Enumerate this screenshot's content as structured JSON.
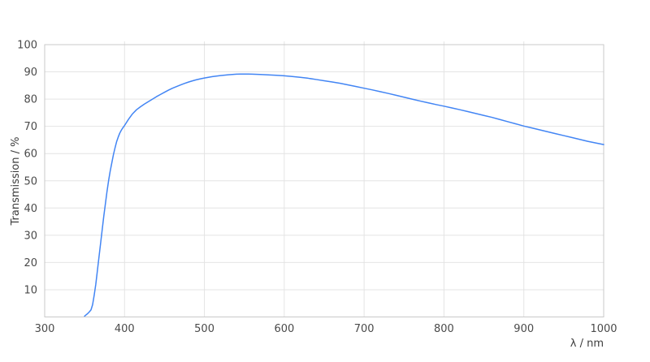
{
  "page": {
    "background": "#ffffff"
  },
  "chart_data": {
    "type": "line",
    "title": "",
    "xlabel": "λ / nm",
    "ylabel": "Transmission / %",
    "xlim": [
      300,
      1000
    ],
    "ylim": [
      0,
      100
    ],
    "x_ticks": [
      300,
      400,
      500,
      600,
      700,
      800,
      900,
      1000
    ],
    "y_ticks": [
      10,
      20,
      30,
      40,
      50,
      60,
      70,
      80,
      90,
      100
    ],
    "grid": true,
    "legend": false,
    "colors": {
      "line": "#4285f4",
      "grid": "#e4e4e4",
      "border": "#c9c9c9",
      "tick_label": "#4a4a4a",
      "axis_title": "#3c3c3c",
      "background": "#ffffff"
    },
    "series": [
      {
        "points": [
          [
            350,
            0.3
          ],
          [
            352,
            0.8
          ],
          [
            354,
            1.3
          ],
          [
            356,
            1.9
          ],
          [
            358,
            2.6
          ],
          [
            360,
            4.5
          ],
          [
            362,
            8.0
          ],
          [
            364,
            12.0
          ],
          [
            366,
            17.0
          ],
          [
            368,
            22.0
          ],
          [
            370,
            27.0
          ],
          [
            372,
            32.0
          ],
          [
            374,
            37.0
          ],
          [
            376,
            41.5
          ],
          [
            378,
            46.0
          ],
          [
            380,
            50.0
          ],
          [
            382,
            53.5
          ],
          [
            384,
            56.5
          ],
          [
            386,
            59.5
          ],
          [
            388,
            62.0
          ],
          [
            390,
            64.3
          ],
          [
            392,
            66.0
          ],
          [
            394,
            67.5
          ],
          [
            396,
            68.6
          ],
          [
            398,
            69.5
          ],
          [
            400,
            70.3
          ],
          [
            405,
            72.6
          ],
          [
            410,
            74.6
          ],
          [
            415,
            76.1
          ],
          [
            420,
            77.2
          ],
          [
            425,
            78.2
          ],
          [
            430,
            79.1
          ],
          [
            435,
            80.0
          ],
          [
            440,
            80.9
          ],
          [
            445,
            81.7
          ],
          [
            450,
            82.5
          ],
          [
            455,
            83.3
          ],
          [
            460,
            84.0
          ],
          [
            465,
            84.6
          ],
          [
            470,
            85.2
          ],
          [
            475,
            85.75
          ],
          [
            480,
            86.25
          ],
          [
            485,
            86.7
          ],
          [
            490,
            87.1
          ],
          [
            495,
            87.45
          ],
          [
            500,
            87.75
          ],
          [
            505,
            88.0
          ],
          [
            510,
            88.25
          ],
          [
            515,
            88.45
          ],
          [
            520,
            88.65
          ],
          [
            525,
            88.8
          ],
          [
            530,
            88.95
          ],
          [
            535,
            89.05
          ],
          [
            540,
            89.15
          ],
          [
            545,
            89.2
          ],
          [
            550,
            89.2
          ],
          [
            555,
            89.2
          ],
          [
            560,
            89.15
          ],
          [
            570,
            89.05
          ],
          [
            580,
            88.9
          ],
          [
            590,
            88.75
          ],
          [
            600,
            88.55
          ],
          [
            610,
            88.3
          ],
          [
            620,
            88.0
          ],
          [
            630,
            87.65
          ],
          [
            640,
            87.2
          ],
          [
            650,
            86.75
          ],
          [
            660,
            86.3
          ],
          [
            670,
            85.8
          ],
          [
            680,
            85.2
          ],
          [
            690,
            84.6
          ],
          [
            700,
            84.0
          ],
          [
            710,
            83.4
          ],
          [
            720,
            82.75
          ],
          [
            730,
            82.1
          ],
          [
            740,
            81.4
          ],
          [
            750,
            80.7
          ],
          [
            760,
            80.0
          ],
          [
            770,
            79.3
          ],
          [
            780,
            78.65
          ],
          [
            790,
            78.0
          ],
          [
            800,
            77.4
          ],
          [
            810,
            76.75
          ],
          [
            820,
            76.1
          ],
          [
            830,
            75.4
          ],
          [
            840,
            74.7
          ],
          [
            850,
            74.0
          ],
          [
            860,
            73.3
          ],
          [
            870,
            72.5
          ],
          [
            880,
            71.7
          ],
          [
            890,
            70.9
          ],
          [
            900,
            70.1
          ],
          [
            910,
            69.4
          ],
          [
            920,
            68.7
          ],
          [
            930,
            68.0
          ],
          [
            940,
            67.3
          ],
          [
            950,
            66.6
          ],
          [
            960,
            65.9
          ],
          [
            970,
            65.2
          ],
          [
            980,
            64.5
          ],
          [
            990,
            63.9
          ],
          [
            1000,
            63.3
          ]
        ]
      }
    ]
  }
}
